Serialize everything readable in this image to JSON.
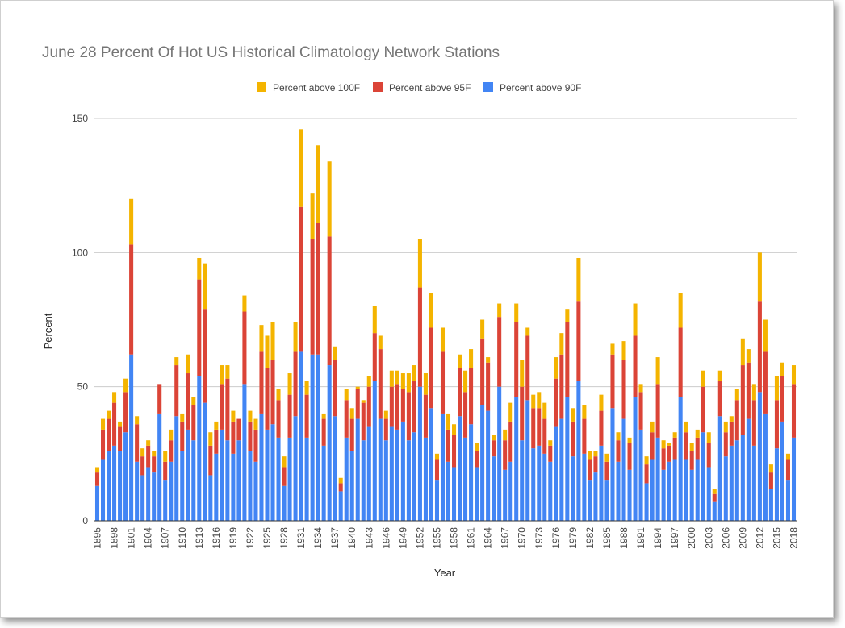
{
  "chart_data": {
    "type": "bar",
    "stacked": true,
    "title": "June 28 Percent Of Hot US Historical Climatology Network Stations",
    "xlabel": "Year",
    "ylabel": "Percent",
    "ylim": [
      0,
      150
    ],
    "yticks": [
      0,
      50,
      100,
      150
    ],
    "grid": true,
    "legend_position": "top",
    "legend": [
      "Percent above 100F",
      "Percent above 95F",
      "Percent above 90F"
    ],
    "colors": {
      "Percent above 90F": "#4285f4",
      "Percent above 95F": "#db4437",
      "Percent above 100F": "#f4b400"
    },
    "x": [
      1895,
      1896,
      1897,
      1898,
      1899,
      1900,
      1901,
      1902,
      1903,
      1904,
      1905,
      1906,
      1907,
      1908,
      1909,
      1910,
      1911,
      1912,
      1913,
      1914,
      1915,
      1916,
      1917,
      1918,
      1919,
      1920,
      1921,
      1922,
      1923,
      1924,
      1925,
      1926,
      1927,
      1928,
      1929,
      1930,
      1931,
      1932,
      1933,
      1934,
      1935,
      1936,
      1937,
      1938,
      1939,
      1940,
      1941,
      1942,
      1943,
      1944,
      1945,
      1946,
      1947,
      1948,
      1949,
      1950,
      1951,
      1952,
      1953,
      1954,
      1955,
      1956,
      1957,
      1958,
      1959,
      1960,
      1961,
      1962,
      1963,
      1964,
      1965,
      1966,
      1967,
      1968,
      1969,
      1970,
      1971,
      1972,
      1973,
      1974,
      1975,
      1976,
      1977,
      1978,
      1979,
      1980,
      1981,
      1982,
      1983,
      1984,
      1985,
      1986,
      1987,
      1988,
      1989,
      1990,
      1991,
      1992,
      1993,
      1994,
      1995,
      1996,
      1997,
      1998,
      1999,
      2000,
      2001,
      2002,
      2003,
      2004,
      2005,
      2006,
      2007,
      2008,
      2009,
      2010,
      2011,
      2012,
      2013,
      2014,
      2015,
      2016,
      2017,
      2018
    ],
    "xtick_labels": [
      "1895",
      "1898",
      "1901",
      "1904",
      "1907",
      "1910",
      "1913",
      "1916",
      "1919",
      "1922",
      "1925",
      "1928",
      "1931",
      "1934",
      "1937",
      "1940",
      "1943",
      "1946",
      "1949",
      "1952",
      "1955",
      "1958",
      "1961",
      "1964",
      "1967",
      "1970",
      "1973",
      "1976",
      "1979",
      "1982",
      "1985",
      "1988",
      "1991",
      "1994",
      "1997",
      "2000",
      "2003",
      "2006",
      "2009",
      "2012",
      "2015",
      "2018"
    ],
    "series": [
      {
        "name": "Percent above 90F",
        "values": [
          13,
          23,
          26,
          28,
          26,
          33,
          62,
          22,
          17,
          20,
          18,
          40,
          15,
          22,
          39,
          26,
          34,
          30,
          54,
          44,
          17,
          25,
          34,
          30,
          25,
          30,
          51,
          26,
          22,
          40,
          34,
          36,
          31,
          13,
          31,
          39,
          63,
          31,
          62,
          62,
          28,
          58,
          39,
          11,
          31,
          26,
          38,
          30,
          35,
          52,
          38,
          30,
          35,
          34,
          37,
          30,
          33,
          50,
          31,
          42,
          15,
          40,
          22,
          20,
          39,
          31,
          36,
          20,
          43,
          41,
          24,
          50,
          19,
          22,
          46,
          30,
          45,
          27,
          28,
          25,
          22,
          35,
          38,
          46,
          24,
          52,
          25,
          15,
          18,
          28,
          15,
          42,
          22,
          38,
          19,
          46,
          34,
          14,
          23,
          31,
          19,
          22,
          23,
          46,
          23,
          19,
          23,
          33,
          20,
          7,
          39,
          24,
          28,
          30,
          32,
          38,
          28,
          48,
          40,
          12,
          27,
          37,
          15,
          31
        ]
      },
      {
        "name": "Percent above 95F",
        "values": [
          5,
          11,
          12,
          16,
          9,
          15,
          41,
          14,
          7,
          8,
          6,
          11,
          7,
          8,
          19,
          11,
          21,
          13,
          36,
          35,
          11,
          9,
          17,
          23,
          12,
          8,
          27,
          11,
          12,
          23,
          23,
          24,
          14,
          7,
          16,
          24,
          54,
          16,
          43,
          49,
          10,
          48,
          21,
          3,
          14,
          12,
          11,
          14,
          15,
          18,
          26,
          8,
          15,
          17,
          12,
          18,
          19,
          37,
          16,
          30,
          8,
          23,
          12,
          12,
          18,
          17,
          21,
          6,
          25,
          18,
          6,
          26,
          11,
          15,
          28,
          20,
          24,
          15,
          14,
          13,
          6,
          18,
          24,
          28,
          13,
          30,
          13,
          8,
          6,
          13,
          7,
          20,
          8,
          22,
          10,
          23,
          14,
          7,
          10,
          20,
          8,
          6,
          8,
          26,
          10,
          7,
          8,
          17,
          9,
          3,
          13,
          9,
          9,
          15,
          26,
          21,
          17,
          34,
          23,
          6,
          18,
          17,
          8,
          20
        ]
      },
      {
        "name": "Percent above 100F",
        "values": [
          2,
          4,
          3,
          4,
          2,
          5,
          17,
          3,
          3,
          2,
          2,
          0,
          4,
          4,
          3,
          3,
          7,
          3,
          8,
          17,
          5,
          3,
          7,
          5,
          4,
          0,
          6,
          4,
          4,
          10,
          12,
          14,
          4,
          4,
          8,
          11,
          29,
          5,
          17,
          29,
          2,
          28,
          5,
          2,
          4,
          4,
          1,
          1,
          4,
          10,
          5,
          3,
          6,
          5,
          6,
          7,
          6,
          18,
          8,
          13,
          2,
          9,
          6,
          4,
          5,
          8,
          7,
          3,
          7,
          2,
          2,
          5,
          4,
          7,
          7,
          10,
          3,
          5,
          6,
          6,
          2,
          8,
          8,
          5,
          5,
          16,
          5,
          3,
          2,
          6,
          3,
          4,
          3,
          7,
          2,
          12,
          3,
          3,
          4,
          10,
          3,
          1,
          2,
          13,
          4,
          3,
          3,
          6,
          4,
          2,
          4,
          4,
          2,
          4,
          10,
          5,
          6,
          18,
          12,
          3,
          9,
          5,
          2,
          7
        ]
      }
    ]
  }
}
